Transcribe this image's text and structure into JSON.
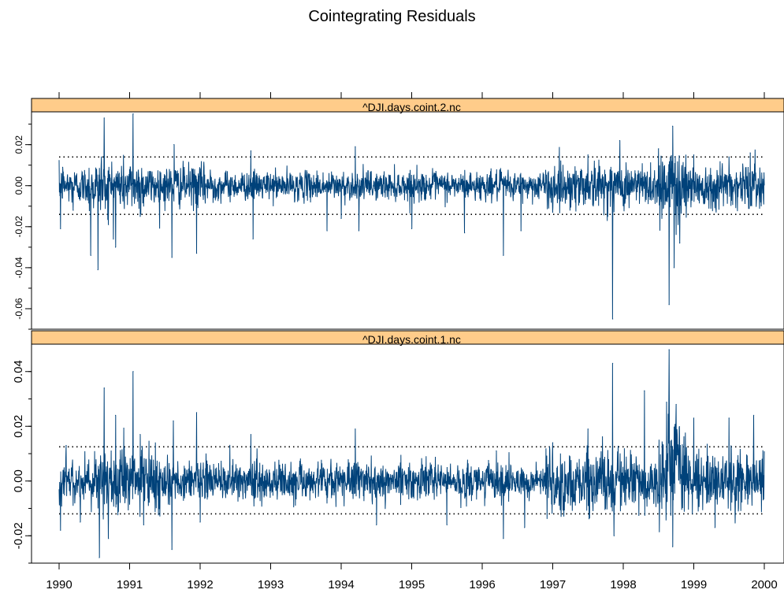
{
  "chart_data": {
    "type": "line",
    "title": "Cointegrating Residuals",
    "x_axis": {
      "range": [
        1990,
        2000
      ],
      "ticks": [
        1990,
        1991,
        1992,
        1993,
        1994,
        1995,
        1996,
        1997,
        1998,
        1999,
        2000
      ],
      "tick_labels": [
        "1990",
        "1991",
        "1992",
        "1993",
        "1994",
        "1995",
        "1996",
        "1997",
        "1998",
        "1999",
        "2000"
      ]
    },
    "panels": [
      {
        "name": "^DJI.days.coint.2.nc",
        "ylim": [
          -0.07,
          0.036
        ],
        "y_ticks": [
          -0.06,
          -0.04,
          -0.02,
          0.0,
          0.02
        ],
        "y_tick_labels": [
          "-0.06",
          "-0.04",
          "-0.02",
          "0.00",
          "0.02"
        ],
        "reference_lines": [
          0.014,
          -0.014
        ],
        "series_color": "#00427a",
        "approx_points": [
          [
            1990.02,
            -0.021
          ],
          [
            1990.05,
            0.009
          ],
          [
            1990.2,
            -0.012
          ],
          [
            1990.45,
            -0.034
          ],
          [
            1990.55,
            -0.041
          ],
          [
            1990.6,
            0.014
          ],
          [
            1990.64,
            0.033
          ],
          [
            1990.7,
            -0.019
          ],
          [
            1990.8,
            -0.03
          ],
          [
            1991.05,
            0.035
          ],
          [
            1991.15,
            -0.015
          ],
          [
            1991.6,
            -0.035
          ],
          [
            1991.63,
            0.02
          ],
          [
            1991.95,
            -0.033
          ],
          [
            1992.75,
            -0.026
          ],
          [
            1992.72,
            0.017
          ],
          [
            1993.8,
            -0.022
          ],
          [
            1994.0,
            -0.016
          ],
          [
            1994.2,
            0.019
          ],
          [
            1994.25,
            -0.022
          ],
          [
            1995.0,
            -0.021
          ],
          [
            1995.75,
            -0.023
          ],
          [
            1996.3,
            -0.034
          ],
          [
            1996.55,
            -0.022
          ],
          [
            1997.0,
            -0.013
          ],
          [
            1997.5,
            0.015
          ],
          [
            1997.85,
            -0.065
          ],
          [
            1997.95,
            0.022
          ],
          [
            1998.5,
            0.018
          ],
          [
            1998.65,
            -0.058
          ],
          [
            1998.7,
            0.029
          ],
          [
            1998.72,
            -0.04
          ],
          [
            1998.8,
            -0.028
          ],
          [
            1999.0,
            0.015
          ],
          [
            1999.5,
            0.014
          ],
          [
            1999.8,
            0.016
          ],
          [
            1999.95,
            -0.008
          ]
        ]
      },
      {
        "name": "^DJI.days.coint.1.nc",
        "ylim": [
          -0.03,
          0.05
        ],
        "y_ticks": [
          -0.02,
          0.0,
          0.02,
          0.04
        ],
        "y_tick_labels": [
          "-0.02",
          "0.00",
          "0.02",
          "0.04"
        ],
        "reference_lines": [
          0.0125,
          -0.012
        ],
        "series_color": "#00427a",
        "approx_points": [
          [
            1990.02,
            -0.018
          ],
          [
            1990.1,
            0.013
          ],
          [
            1990.3,
            -0.015
          ],
          [
            1990.57,
            -0.028
          ],
          [
            1990.64,
            0.034
          ],
          [
            1990.7,
            -0.021
          ],
          [
            1990.8,
            0.024
          ],
          [
            1991.05,
            0.04
          ],
          [
            1991.15,
            0.017
          ],
          [
            1991.2,
            -0.016
          ],
          [
            1991.6,
            -0.025
          ],
          [
            1991.62,
            0.022
          ],
          [
            1991.95,
            0.025
          ],
          [
            1992.0,
            -0.015
          ],
          [
            1992.72,
            0.017
          ],
          [
            1994.2,
            0.019
          ],
          [
            1994.5,
            -0.016
          ],
          [
            1995.5,
            -0.016
          ],
          [
            1996.2,
            0.011
          ],
          [
            1996.3,
            -0.021
          ],
          [
            1996.6,
            -0.017
          ],
          [
            1997.0,
            0.014
          ],
          [
            1997.5,
            0.019
          ],
          [
            1997.85,
            0.043
          ],
          [
            1997.87,
            -0.02
          ],
          [
            1998.3,
            0.033
          ],
          [
            1998.65,
            0.048
          ],
          [
            1998.7,
            -0.024
          ],
          [
            1998.75,
            0.028
          ],
          [
            1999.0,
            0.023
          ],
          [
            1999.3,
            -0.017
          ],
          [
            1999.5,
            0.023
          ],
          [
            1999.85,
            0.024
          ],
          [
            1999.97,
            0.008
          ]
        ]
      }
    ],
    "grid": false,
    "legend": "strip-labels"
  }
}
